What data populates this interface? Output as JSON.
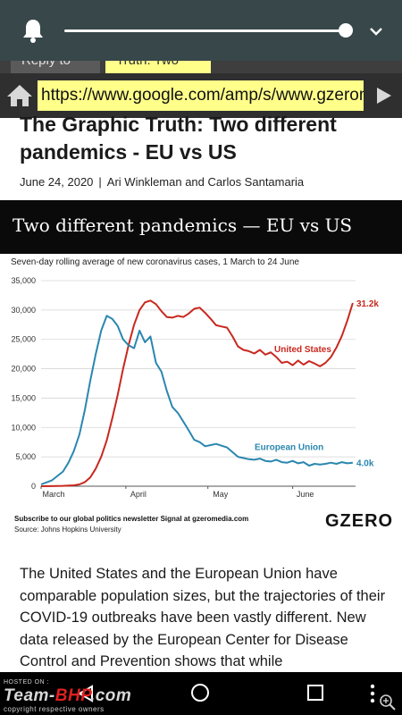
{
  "browser": {
    "tabs": [
      {
        "label": "Reply to"
      },
      {
        "label": "Truth: Two"
      }
    ],
    "url": "https://www.google.com/amp/s/www.gzeromedia.com"
  },
  "article": {
    "headline": "The Graphic Truth: Two different pandemics - EU vs US",
    "date": "June 24, 2020",
    "separator": "|",
    "authors": "Ari Winkleman and Carlos Santamaria",
    "body": "The United States and the European Union have comparable population sizes, but the trajectories of their COVID-19 outbreaks have been vastly different. New  data  released by the European Center for Disease Control and Prevention shows that while"
  },
  "chart_card": {
    "banner_title": "Two different pandemics — EU vs US",
    "footer_subscribe": "Subscribe to our global politics newsletter Signal at gzeromedia.com",
    "footer_source": "Source: Johns Hopkins University",
    "brand": "GZERO"
  },
  "chart_data": {
    "type": "line",
    "title": "Seven-day rolling average of new coronavirus cases, 1 March to 24 June",
    "x_unit": "days since 1 March 2020",
    "x_tick_labels": [
      {
        "label": "March",
        "x": 0
      },
      {
        "label": "April",
        "x": 31
      },
      {
        "label": "May",
        "x": 61
      },
      {
        "label": "June",
        "x": 92
      }
    ],
    "xlim": [
      0,
      115
    ],
    "ylim": [
      0,
      35000
    ],
    "y_ticks": [
      0,
      5000,
      10000,
      15000,
      20000,
      25000,
      30000,
      35000
    ],
    "y_tick_labels": [
      "0",
      "5,000",
      "10,000",
      "15,000",
      "20,000",
      "25,000",
      "30,000",
      "35,000"
    ],
    "grid": true,
    "series": [
      {
        "name": "United States",
        "color": "#c8281e",
        "end_label": "31.2k",
        "points": [
          [
            0,
            5
          ],
          [
            4,
            20
          ],
          [
            8,
            60
          ],
          [
            12,
            150
          ],
          [
            14,
            300
          ],
          [
            16,
            700
          ],
          [
            18,
            1500
          ],
          [
            20,
            3000
          ],
          [
            22,
            5000
          ],
          [
            24,
            7800
          ],
          [
            26,
            11500
          ],
          [
            28,
            15500
          ],
          [
            30,
            20000
          ],
          [
            32,
            24000
          ],
          [
            34,
            27500
          ],
          [
            36,
            30000
          ],
          [
            38,
            31300
          ],
          [
            40,
            31600
          ],
          [
            42,
            31000
          ],
          [
            44,
            29800
          ],
          [
            46,
            28800
          ],
          [
            48,
            28700
          ],
          [
            50,
            29000
          ],
          [
            52,
            28800
          ],
          [
            54,
            29400
          ],
          [
            56,
            30200
          ],
          [
            58,
            30400
          ],
          [
            60,
            29500
          ],
          [
            62,
            28500
          ],
          [
            64,
            27400
          ],
          [
            66,
            27200
          ],
          [
            68,
            27000
          ],
          [
            70,
            25500
          ],
          [
            72,
            23800
          ],
          [
            74,
            23200
          ],
          [
            76,
            23000
          ],
          [
            78,
            22600
          ],
          [
            80,
            23200
          ],
          [
            82,
            22400
          ],
          [
            84,
            22800
          ],
          [
            86,
            22000
          ],
          [
            88,
            21000
          ],
          [
            90,
            21200
          ],
          [
            92,
            20600
          ],
          [
            94,
            21400
          ],
          [
            96,
            20700
          ],
          [
            98,
            21300
          ],
          [
            100,
            20900
          ],
          [
            102,
            20400
          ],
          [
            104,
            21000
          ],
          [
            106,
            22000
          ],
          [
            108,
            23600
          ],
          [
            110,
            25600
          ],
          [
            112,
            28200
          ],
          [
            114,
            31200
          ]
        ]
      },
      {
        "name": "European Union",
        "color": "#2b87b0",
        "end_label": "4.0k",
        "points": [
          [
            0,
            300
          ],
          [
            4,
            1000
          ],
          [
            8,
            2500
          ],
          [
            10,
            4000
          ],
          [
            12,
            6000
          ],
          [
            14,
            8800
          ],
          [
            16,
            13000
          ],
          [
            18,
            18000
          ],
          [
            20,
            22500
          ],
          [
            22,
            26500
          ],
          [
            24,
            29000
          ],
          [
            26,
            28500
          ],
          [
            28,
            27300
          ],
          [
            30,
            25000
          ],
          [
            32,
            24000
          ],
          [
            34,
            23500
          ],
          [
            36,
            26500
          ],
          [
            38,
            24500
          ],
          [
            40,
            25500
          ],
          [
            42,
            21000
          ],
          [
            44,
            19500
          ],
          [
            46,
            16200
          ],
          [
            48,
            13500
          ],
          [
            50,
            12500
          ],
          [
            52,
            11000
          ],
          [
            54,
            9500
          ],
          [
            56,
            7900
          ],
          [
            58,
            7500
          ],
          [
            60,
            6800
          ],
          [
            62,
            7000
          ],
          [
            64,
            7200
          ],
          [
            66,
            6900
          ],
          [
            68,
            6600
          ],
          [
            70,
            5800
          ],
          [
            72,
            5000
          ],
          [
            74,
            4800
          ],
          [
            76,
            4600
          ],
          [
            78,
            4500
          ],
          [
            80,
            4700
          ],
          [
            82,
            4300
          ],
          [
            84,
            4200
          ],
          [
            86,
            4500
          ],
          [
            88,
            4100
          ],
          [
            90,
            4000
          ],
          [
            92,
            4300
          ],
          [
            94,
            3900
          ],
          [
            96,
            4100
          ],
          [
            98,
            3500
          ],
          [
            100,
            3800
          ],
          [
            102,
            3700
          ],
          [
            104,
            3800
          ],
          [
            106,
            4000
          ],
          [
            108,
            3800
          ],
          [
            110,
            4100
          ],
          [
            112,
            3900
          ],
          [
            114,
            4000
          ]
        ]
      }
    ]
  },
  "volume": {
    "level": 0.97
  },
  "watermark": {
    "hosted": "HOSTED ON :",
    "brand_a": "Team-",
    "brand_b": "BHP",
    "brand_c": ".com",
    "copyright": "copyright respective owners"
  },
  "icons": [
    "bell-icon",
    "chevron-down-icon",
    "home-icon",
    "forward-arrow-icon",
    "back-triangle-icon",
    "home-circle-icon",
    "recents-square-icon",
    "more-vert-icon",
    "zoom-in-icon"
  ]
}
